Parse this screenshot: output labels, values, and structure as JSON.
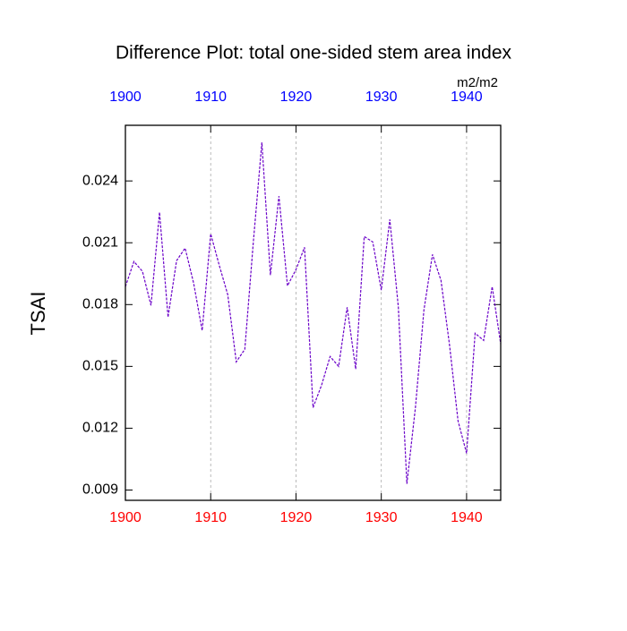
{
  "chart_data": {
    "type": "line",
    "title": "Difference Plot: total one-sided stem area index",
    "units": "m2/m2",
    "ylabel": "TSAI",
    "x": [
      1900,
      1901,
      1902,
      1903,
      1904,
      1905,
      1906,
      1907,
      1908,
      1909,
      1910,
      1911,
      1912,
      1913,
      1914,
      1915,
      1916,
      1917,
      1918,
      1919,
      1920,
      1921,
      1922,
      1923,
      1924,
      1925,
      1926,
      1927,
      1928,
      1929,
      1930,
      1931,
      1932,
      1933,
      1934,
      1935,
      1936,
      1937,
      1938,
      1939,
      1940,
      1941,
      1942,
      1943,
      1944
    ],
    "values": [
      0.01887,
      0.02009,
      0.01961,
      0.01796,
      0.02248,
      0.01739,
      0.02013,
      0.02074,
      0.01904,
      0.01674,
      0.02143,
      0.01991,
      0.01848,
      0.01522,
      0.01583,
      0.02104,
      0.02587,
      0.01943,
      0.02326,
      0.01891,
      0.0197,
      0.02078,
      0.013,
      0.01409,
      0.01548,
      0.015,
      0.01787,
      0.01487,
      0.0213,
      0.02104,
      0.0187,
      0.02213,
      0.01787,
      0.0093,
      0.013,
      0.01774,
      0.02043,
      0.01917,
      0.01604,
      0.01235,
      0.01078,
      0.01661,
      0.01626,
      0.01887,
      0.01609
    ],
    "color": "#6a00c8",
    "xlim": [
      1900,
      1944
    ],
    "xticks": [
      1900,
      1910,
      1920,
      1930,
      1940
    ],
    "ylim": [
      0.0085,
      0.0267
    ],
    "yticks": [
      0.009,
      0.012,
      0.015,
      0.018,
      0.021,
      0.024
    ],
    "top_tick_color": "#0000ff",
    "bottom_tick_color": "#ff0000",
    "grid": true
  }
}
